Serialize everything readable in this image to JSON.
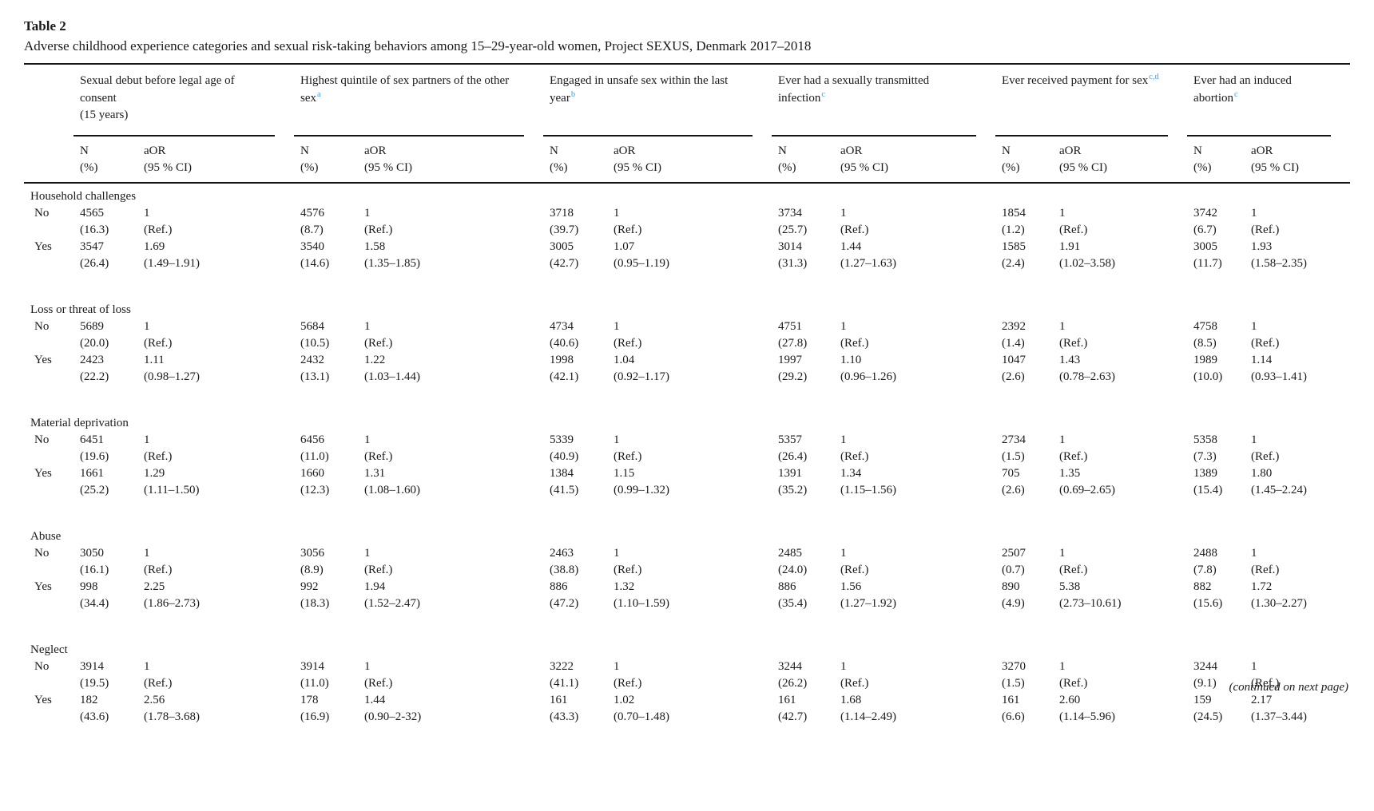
{
  "table": {
    "label": "Table 2",
    "caption": "Adverse childhood experience categories and sexual risk-taking behaviors among 15–29-year-old women, Project SEXUS, Denmark 2017–2018",
    "continued_note": "(continued on next page)",
    "sup_color": "#4da0d8",
    "columns": [
      {
        "title": "Sexual debut before legal age of consent",
        "subtitle": "(15 years)",
        "sup": ""
      },
      {
        "title": "Highest quintile of sex partners of the other sex",
        "subtitle": "",
        "sup": "a"
      },
      {
        "title": "Engaged in unsafe sex within the last year",
        "subtitle": "",
        "sup": "b"
      },
      {
        "title": "Ever had a sexually transmitted infection",
        "subtitle": "",
        "sup": "c"
      },
      {
        "title": "Ever received payment for sex",
        "subtitle": "",
        "sup": "c,d"
      },
      {
        "title": "Ever had an induced abortion",
        "subtitle": "",
        "sup": "c"
      }
    ],
    "subheaders": {
      "n1": "N",
      "n2": "(%)",
      "aor1": "aOR",
      "aor2": "(95 % CI)"
    },
    "groups": [
      {
        "name": "Household challenges",
        "rows": [
          {
            "label": "No",
            "cells": [
              {
                "n": "4565",
                "pct": "(16.3)",
                "aor": "1",
                "ci": "(Ref.)"
              },
              {
                "n": "4576",
                "pct": "(8.7)",
                "aor": "1",
                "ci": "(Ref.)"
              },
              {
                "n": "3718",
                "pct": "(39.7)",
                "aor": "1",
                "ci": "(Ref.)"
              },
              {
                "n": "3734",
                "pct": "(25.7)",
                "aor": "1",
                "ci": "(Ref.)"
              },
              {
                "n": "1854",
                "pct": "(1.2)",
                "aor": "1",
                "ci": "(Ref.)"
              },
              {
                "n": "3742",
                "pct": "(6.7)",
                "aor": "1",
                "ci": "(Ref.)"
              }
            ]
          },
          {
            "label": "Yes",
            "cells": [
              {
                "n": "3547",
                "pct": "(26.4)",
                "aor": "1.69",
                "ci": "(1.49–1.91)"
              },
              {
                "n": "3540",
                "pct": "(14.6)",
                "aor": "1.58",
                "ci": "(1.35–1.85)"
              },
              {
                "n": "3005",
                "pct": "(42.7)",
                "aor": "1.07",
                "ci": "(0.95–1.19)"
              },
              {
                "n": "3014",
                "pct": "(31.3)",
                "aor": "1.44",
                "ci": "(1.27–1.63)"
              },
              {
                "n": "1585",
                "pct": "(2.4)",
                "aor": "1.91",
                "ci": "(1.02–3.58)"
              },
              {
                "n": "3005",
                "pct": "(11.7)",
                "aor": "1.93",
                "ci": "(1.58–2.35)"
              }
            ]
          }
        ]
      },
      {
        "name": "Loss or threat of loss",
        "rows": [
          {
            "label": "No",
            "cells": [
              {
                "n": "5689",
                "pct": "(20.0)",
                "aor": "1",
                "ci": "(Ref.)"
              },
              {
                "n": "5684",
                "pct": "(10.5)",
                "aor": "1",
                "ci": "(Ref.)"
              },
              {
                "n": "4734",
                "pct": "(40.6)",
                "aor": "1",
                "ci": "(Ref.)"
              },
              {
                "n": "4751",
                "pct": "(27.8)",
                "aor": "1",
                "ci": "(Ref.)"
              },
              {
                "n": "2392",
                "pct": "(1.4)",
                "aor": "1",
                "ci": "(Ref.)"
              },
              {
                "n": "4758",
                "pct": "(8.5)",
                "aor": "1",
                "ci": "(Ref.)"
              }
            ]
          },
          {
            "label": "Yes",
            "cells": [
              {
                "n": "2423",
                "pct": "(22.2)",
                "aor": "1.11",
                "ci": "(0.98–1.27)"
              },
              {
                "n": "2432",
                "pct": "(13.1)",
                "aor": "1.22",
                "ci": "(1.03–1.44)"
              },
              {
                "n": "1998",
                "pct": "(42.1)",
                "aor": "1.04",
                "ci": "(0.92–1.17)"
              },
              {
                "n": "1997",
                "pct": "(29.2)",
                "aor": "1.10",
                "ci": "(0.96–1.26)"
              },
              {
                "n": "1047",
                "pct": "(2.6)",
                "aor": "1.43",
                "ci": "(0.78–2.63)"
              },
              {
                "n": "1989",
                "pct": "(10.0)",
                "aor": "1.14",
                "ci": "(0.93–1.41)"
              }
            ]
          }
        ]
      },
      {
        "name": "Material deprivation",
        "rows": [
          {
            "label": "No",
            "cells": [
              {
                "n": "6451",
                "pct": "(19.6)",
                "aor": "1",
                "ci": "(Ref.)"
              },
              {
                "n": "6456",
                "pct": "(11.0)",
                "aor": "1",
                "ci": "(Ref.)"
              },
              {
                "n": "5339",
                "pct": "(40.9)",
                "aor": "1",
                "ci": "(Ref.)"
              },
              {
                "n": "5357",
                "pct": "(26.4)",
                "aor": "1",
                "ci": "(Ref.)"
              },
              {
                "n": "2734",
                "pct": "(1.5)",
                "aor": "1",
                "ci": "(Ref.)"
              },
              {
                "n": "5358",
                "pct": "(7.3)",
                "aor": "1",
                "ci": "(Ref.)"
              }
            ]
          },
          {
            "label": "Yes",
            "cells": [
              {
                "n": "1661",
                "pct": "(25.2)",
                "aor": "1.29",
                "ci": "(1.11–1.50)"
              },
              {
                "n": "1660",
                "pct": "(12.3)",
                "aor": "1.31",
                "ci": "(1.08–1.60)"
              },
              {
                "n": "1384",
                "pct": "(41.5)",
                "aor": "1.15",
                "ci": "(0.99–1.32)"
              },
              {
                "n": "1391",
                "pct": "(35.2)",
                "aor": "1.34",
                "ci": "(1.15–1.56)"
              },
              {
                "n": "705",
                "pct": "(2.6)",
                "aor": "1.35",
                "ci": "(0.69–2.65)"
              },
              {
                "n": "1389",
                "pct": "(15.4)",
                "aor": "1.80",
                "ci": "(1.45–2.24)"
              }
            ]
          }
        ]
      },
      {
        "name": "Abuse",
        "rows": [
          {
            "label": "No",
            "cells": [
              {
                "n": "3050",
                "pct": "(16.1)",
                "aor": "1",
                "ci": "(Ref.)"
              },
              {
                "n": "3056",
                "pct": "(8.9)",
                "aor": "1",
                "ci": "(Ref.)"
              },
              {
                "n": "2463",
                "pct": "(38.8)",
                "aor": "1",
                "ci": "(Ref.)"
              },
              {
                "n": "2485",
                "pct": "(24.0)",
                "aor": "1",
                "ci": "(Ref.)"
              },
              {
                "n": "2507",
                "pct": "(0.7)",
                "aor": "1",
                "ci": "(Ref.)"
              },
              {
                "n": "2488",
                "pct": "(7.8)",
                "aor": "1",
                "ci": "(Ref.)"
              }
            ]
          },
          {
            "label": "Yes",
            "cells": [
              {
                "n": "998",
                "pct": "(34.4)",
                "aor": "2.25",
                "ci": "(1.86–2.73)"
              },
              {
                "n": "992",
                "pct": "(18.3)",
                "aor": "1.94",
                "ci": "(1.52–2.47)"
              },
              {
                "n": "886",
                "pct": "(47.2)",
                "aor": "1.32",
                "ci": "(1.10–1.59)"
              },
              {
                "n": "886",
                "pct": "(35.4)",
                "aor": "1.56",
                "ci": "(1.27–1.92)"
              },
              {
                "n": "890",
                "pct": "(4.9)",
                "aor": "5.38",
                "ci": "(2.73–10.61)"
              },
              {
                "n": "882",
                "pct": "(15.6)",
                "aor": "1.72",
                "ci": "(1.30–2.27)"
              }
            ]
          }
        ]
      },
      {
        "name": "Neglect",
        "rows": [
          {
            "label": "No",
            "cells": [
              {
                "n": "3914",
                "pct": "(19.5)",
                "aor": "1",
                "ci": "(Ref.)"
              },
              {
                "n": "3914",
                "pct": "(11.0)",
                "aor": "1",
                "ci": "(Ref.)"
              },
              {
                "n": "3222",
                "pct": "(41.1)",
                "aor": "1",
                "ci": "(Ref.)"
              },
              {
                "n": "3244",
                "pct": "(26.2)",
                "aor": "1",
                "ci": "(Ref.)"
              },
              {
                "n": "3270",
                "pct": "(1.5)",
                "aor": "1",
                "ci": "(Ref.)"
              },
              {
                "n": "3244",
                "pct": "(9.1)",
                "aor": "1",
                "ci": "(Ref.)"
              }
            ]
          },
          {
            "label": "Yes",
            "cells": [
              {
                "n": "182",
                "pct": "(43.6)",
                "aor": "2.56",
                "ci": "(1.78–3.68)"
              },
              {
                "n": "178",
                "pct": "(16.9)",
                "aor": "1.44",
                "ci": "(0.90–2-32)"
              },
              {
                "n": "161",
                "pct": "(43.3)",
                "aor": "1.02",
                "ci": "(0.70–1.48)"
              },
              {
                "n": "161",
                "pct": "(42.7)",
                "aor": "1.68",
                "ci": "(1.14–2.49)"
              },
              {
                "n": "161",
                "pct": "(6.6)",
                "aor": "2.60",
                "ci": "(1.14–5.96)"
              },
              {
                "n": "159",
                "pct": "(24.5)",
                "aor": "2.17",
                "ci": "(1.37–3.44)"
              }
            ]
          }
        ]
      }
    ]
  }
}
